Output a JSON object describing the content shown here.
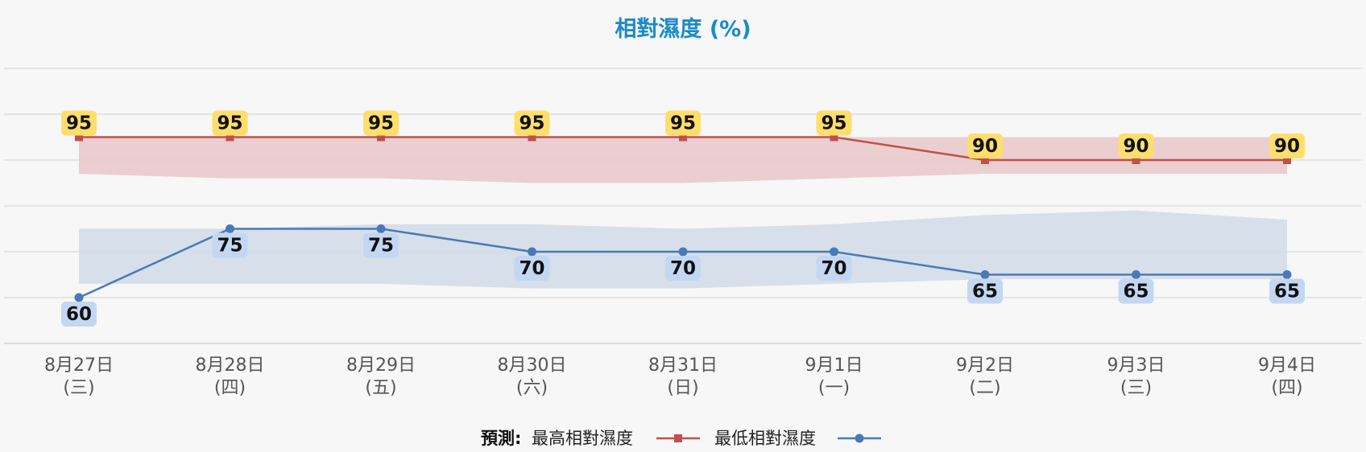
{
  "chart_data": {
    "type": "line",
    "title": "相對濕度 (%)",
    "categories": [
      [
        "8月27日",
        "(三)"
      ],
      [
        "8月28日",
        "(四)"
      ],
      [
        "8月29日",
        "(五)"
      ],
      [
        "8月30日",
        "(六)"
      ],
      [
        "8月31日",
        "(日)"
      ],
      [
        "9月1日",
        "(一)"
      ],
      [
        "9月2日",
        "(二)"
      ],
      [
        "9月3日",
        "(三)"
      ],
      [
        "9月4日",
        "(四)"
      ]
    ],
    "ylim": [
      50,
      110
    ],
    "grid": true,
    "legend_position": "bottom",
    "legend_prefix": "預測:",
    "series": [
      {
        "key": "max",
        "name": "最高相對濕度",
        "values": [
          95,
          95,
          95,
          95,
          95,
          95,
          90,
          90,
          90
        ],
        "range_upper": [
          95,
          95,
          95,
          95,
          95,
          95,
          95,
          95,
          95
        ],
        "range_lower": [
          87,
          86,
          86,
          85,
          85,
          86,
          87,
          87,
          87
        ],
        "color": "#c0504d",
        "band_color": "#e8c9cb",
        "label_bg": "#ffde6b",
        "marker": "square"
      },
      {
        "key": "min",
        "name": "最低相對濕度",
        "values": [
          60,
          75,
          75,
          70,
          70,
          70,
          65,
          65,
          65
        ],
        "range_upper": [
          75,
          75,
          76,
          76,
          75,
          76,
          78,
          79,
          77
        ],
        "range_lower": [
          63,
          63,
          63,
          62,
          62,
          63,
          64,
          64,
          64
        ],
        "color": "#4a7ab5",
        "band_color": "#d2dce8",
        "label_bg": "#c4d7f2",
        "marker": "circle"
      }
    ]
  }
}
